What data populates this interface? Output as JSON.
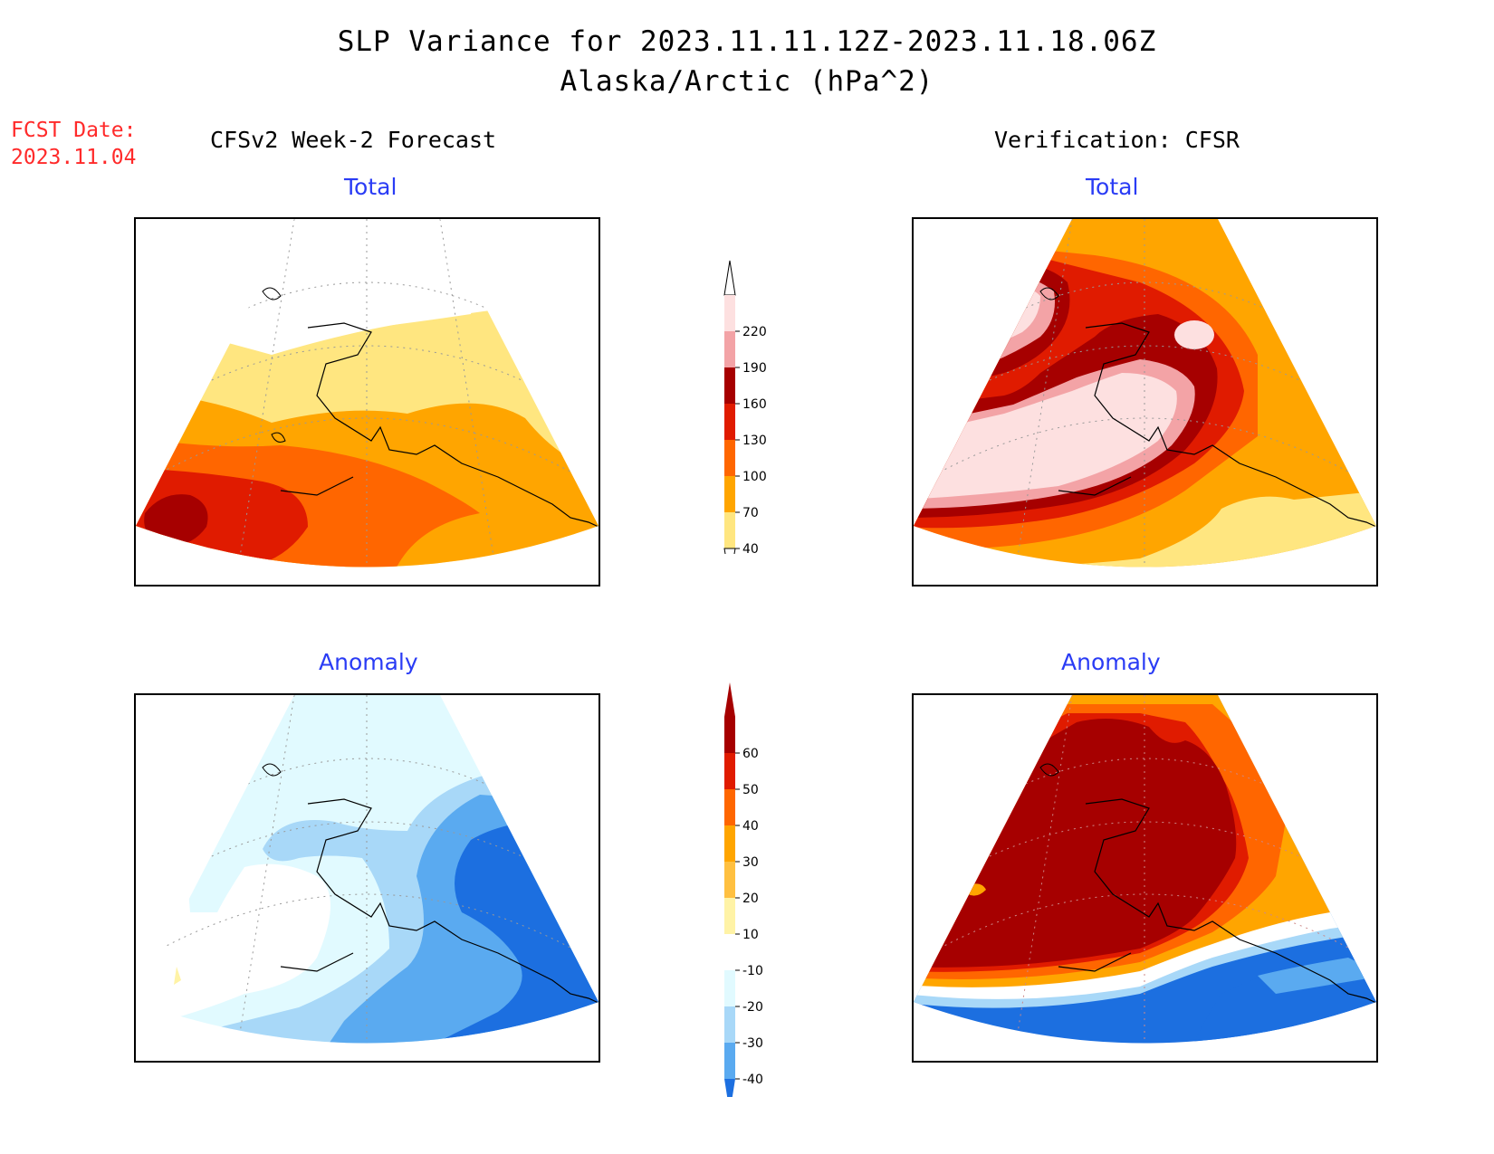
{
  "header": {
    "title": "SLP Variance for 2023.11.11.12Z-2023.11.18.06Z",
    "subtitle": "Alaska/Arctic (hPa^2)"
  },
  "forecast_date": {
    "label": "FCST Date:",
    "value": "2023.11.04"
  },
  "columns": {
    "left": "CFSv2 Week-2 Forecast",
    "right": "Verification: CFSR"
  },
  "panels": {
    "fcst_total": "Total",
    "verif_total": "Total",
    "fcst_anom": "Anomaly",
    "verif_anom": "Anomaly"
  },
  "colorbars": {
    "total": {
      "labels": [
        "220",
        "190",
        "160",
        "130",
        "100",
        "70",
        "40"
      ],
      "colors": [
        "#fde0e0",
        "#f3a3a6",
        "#a60000",
        "#e01b00",
        "#ff6600",
        "#ffa500",
        "#ffe680"
      ]
    },
    "anomaly": {
      "labels": [
        "60",
        "50",
        "40",
        "30",
        "20",
        "10",
        "-10",
        "-20",
        "-30",
        "-40"
      ],
      "colors": [
        "#a60000",
        "#e01b00",
        "#ff6600",
        "#ffa500",
        "#ffc040",
        "#fff3a6",
        "#ffffff",
        "#e1faff",
        "#a8d8f8",
        "#5aaaf0",
        "#1c6fe0"
      ]
    }
  }
}
